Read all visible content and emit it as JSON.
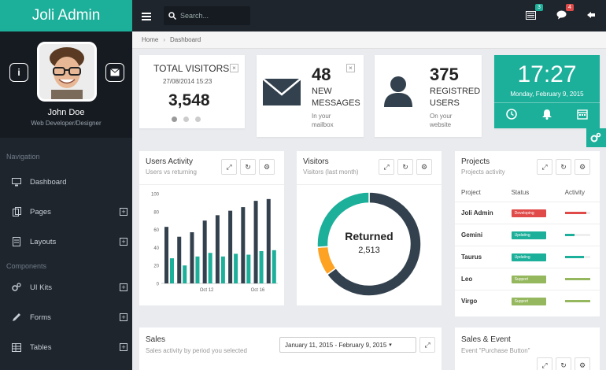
{
  "app": {
    "brand": "Joli Admin"
  },
  "profile": {
    "name": "John Doe",
    "role": "Web Developer/Designer"
  },
  "sidebar": {
    "nav_heading": "Navigation",
    "components_heading": "Components",
    "items": [
      {
        "label": "Dashboard",
        "icon": "desktop-icon"
      },
      {
        "label": "Pages",
        "icon": "pages-icon"
      },
      {
        "label": "Layouts",
        "icon": "layouts-icon"
      },
      {
        "label": "UI Kits",
        "icon": "cogs-icon"
      },
      {
        "label": "Forms",
        "icon": "pencil-icon"
      },
      {
        "label": "Tables",
        "icon": "table-icon"
      }
    ]
  },
  "topbar": {
    "search_placeholder": "Search...",
    "mail_count": "3",
    "messages_count": "4"
  },
  "breadcrumb": {
    "home": "Home",
    "current": "Dashboard"
  },
  "visitors_widget": {
    "title": "TOTAL VISITORS",
    "date": "27/08/2014 15:23",
    "value": "3,548"
  },
  "messages_widget": {
    "count": "48",
    "line1": "NEW",
    "line2": "MESSAGES",
    "sub1": "In your",
    "sub2": "mailbox"
  },
  "users_widget": {
    "count": "375",
    "line1": "REGISTRED",
    "line2": "USERS",
    "sub1": "On your",
    "sub2": "website"
  },
  "clock_widget": {
    "time": "17:27",
    "date": "Monday, February 9, 2015"
  },
  "users_activity": {
    "title": "Users Activity",
    "subtitle": "Users vs returning"
  },
  "visitors_panel": {
    "title": "Visitors",
    "subtitle": "Visitors (last month)",
    "center_label": "Returned",
    "center_value": "2,513"
  },
  "projects": {
    "title": "Projects",
    "subtitle": "Projects activity",
    "headers": [
      "Project",
      "Status",
      "Activity"
    ],
    "rows": [
      {
        "name": "Joli Admin",
        "status": "Developing",
        "status_color": "#e04b4a",
        "activity": 0.85,
        "bar_color": "#e04b4a"
      },
      {
        "name": "Gemini",
        "status": "Updating",
        "status_color": "#1caf9a",
        "activity": 0.4,
        "bar_color": "#1caf9a"
      },
      {
        "name": "Taurus",
        "status": "Updating",
        "status_color": "#1caf9a",
        "activity": 0.75,
        "bar_color": "#1caf9a"
      },
      {
        "name": "Leo",
        "status": "Support",
        "status_color": "#95b75d",
        "activity": 1.0,
        "bar_color": "#95b75d"
      },
      {
        "name": "Virgo",
        "status": "Support",
        "status_color": "#95b75d",
        "activity": 1.0,
        "bar_color": "#95b75d"
      }
    ]
  },
  "sales": {
    "title": "Sales",
    "subtitle": "Sales activity by period you selected",
    "date_range": "January 11, 2015 - February 9, 2015"
  },
  "sales_event": {
    "title": "Sales & Event",
    "subtitle": "Event \"Purchase Button\""
  },
  "colors": {
    "accent": "#1caf9a",
    "dark": "#1f252d",
    "orange": "#fea223",
    "danger": "#e04b4a"
  },
  "chart_data": [
    {
      "type": "bar",
      "title": "",
      "x_tick_labels": [
        "Oct 12",
        "Oct 16"
      ],
      "y_tick_labels": [
        "0",
        "20",
        "40",
        "60",
        "80",
        "100"
      ],
      "ylim": [
        0,
        100
      ],
      "series": [
        {
          "values": [
            63,
            52,
            57,
            70,
            76,
            81,
            85,
            92,
            94
          ]
        },
        {
          "values": [
            28,
            20,
            30,
            34,
            30,
            33,
            32,
            36,
            37
          ]
        }
      ]
    },
    {
      "type": "pie",
      "title": "",
      "slices": [
        {
          "value": 2513,
          "color": "#33414e"
        },
        {
          "value": 0.09,
          "color": "#fea223"
        },
        {
          "value": 0.26,
          "color": "#1caf9a"
        }
      ]
    }
  ]
}
